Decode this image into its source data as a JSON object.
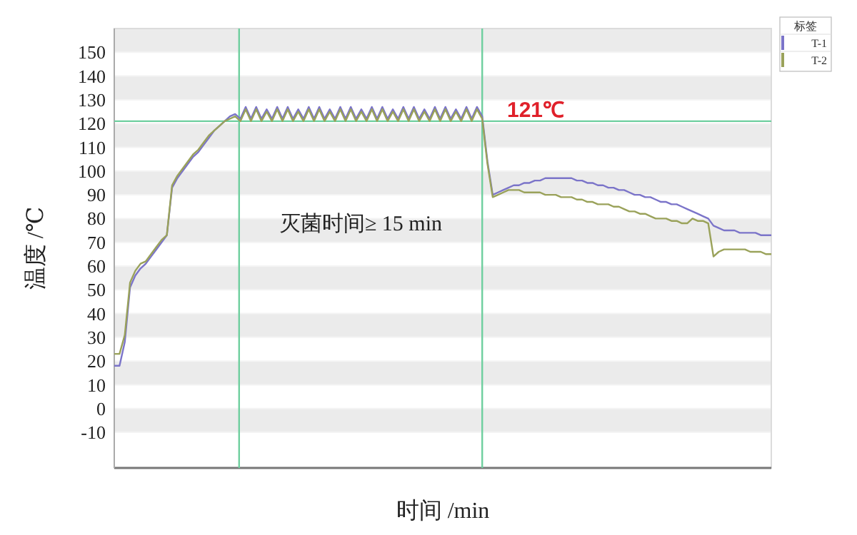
{
  "chart_data": {
    "type": "line",
    "xlabel": "时间 /min",
    "ylabel": "温度 /℃",
    "legend_title": "标签",
    "legend": "top right",
    "grid": "y",
    "tick_labels": "y",
    "marker": "none",
    "line_style": "solid",
    "ylim": [
      -25,
      160
    ],
    "yticks": [
      -10,
      0,
      10,
      20,
      30,
      40,
      50,
      60,
      70,
      80,
      90,
      100,
      110,
      120,
      130,
      140,
      150
    ],
    "categories": [
      null,
      null,
      null,
      null,
      null,
      null,
      null,
      null,
      null,
      null,
      null,
      null,
      null,
      null,
      null,
      null,
      null,
      null,
      null,
      null,
      null,
      null,
      null,
      null,
      null,
      null,
      null,
      null,
      null,
      null,
      null,
      null,
      null,
      null,
      null,
      null,
      null,
      null,
      null,
      null,
      null,
      null,
      null,
      null,
      null,
      null,
      null,
      null,
      null,
      null,
      null,
      null,
      null,
      null,
      null,
      null,
      null,
      null,
      null,
      null,
      null,
      null,
      null,
      null,
      null,
      null,
      null,
      null,
      null,
      null,
      null,
      null,
      null,
      null,
      null,
      null,
      null,
      null,
      null,
      null,
      null,
      null,
      null,
      null,
      null,
      null,
      null,
      null,
      null,
      null,
      null,
      null,
      null,
      null,
      null,
      null,
      null,
      null,
      null,
      null,
      null,
      null,
      null,
      null,
      null,
      null,
      null,
      null,
      null,
      null,
      null,
      null,
      null,
      null,
      null,
      null,
      null,
      null,
      null,
      null,
      null,
      null,
      null,
      null,
      null,
      null
    ],
    "series": [
      {
        "name": "T-1",
        "color": "#7b74c9",
        "values": [
          18,
          18,
          28,
          51,
          56,
          59,
          61,
          64,
          67,
          70,
          73,
          93,
          97,
          100,
          103,
          106,
          108,
          111,
          114,
          117,
          119,
          121,
          123,
          124,
          122,
          127,
          122,
          127,
          122,
          126,
          122,
          127,
          122,
          127,
          122,
          126,
          122,
          127,
          122,
          127,
          122,
          126,
          122,
          127,
          122,
          127,
          122,
          126,
          122,
          127,
          122,
          127,
          122,
          126,
          122,
          127,
          122,
          127,
          122,
          126,
          122,
          127,
          122,
          127,
          122,
          126,
          122,
          127,
          122,
          127,
          123,
          104,
          90,
          91,
          92,
          93,
          94,
          94,
          95,
          95,
          96,
          96,
          97,
          97,
          97,
          97,
          97,
          97,
          96,
          96,
          95,
          95,
          94,
          94,
          93,
          93,
          92,
          92,
          91,
          90,
          90,
          89,
          89,
          88,
          87,
          87,
          86,
          86,
          85,
          84,
          83,
          82,
          81,
          80,
          77,
          76,
          75,
          75,
          75,
          74,
          74,
          74,
          74,
          73,
          73,
          73
        ]
      },
      {
        "name": "T-2",
        "color": "#9aa25a",
        "values": [
          23,
          23,
          31,
          53,
          58,
          61,
          62,
          65,
          68,
          71,
          73,
          94,
          98,
          101,
          104,
          107,
          109,
          112,
          115,
          117,
          119,
          121,
          122,
          123,
          121,
          126,
          121,
          126,
          121,
          125,
          121,
          126,
          121,
          126,
          121,
          125,
          121,
          126,
          121,
          126,
          121,
          125,
          121,
          126,
          121,
          126,
          121,
          125,
          121,
          126,
          121,
          126,
          121,
          125,
          121,
          126,
          121,
          126,
          121,
          125,
          121,
          126,
          121,
          126,
          121,
          125,
          121,
          126,
          121,
          126,
          122,
          103,
          89,
          90,
          91,
          92,
          92,
          92,
          91,
          91,
          91,
          91,
          90,
          90,
          90,
          89,
          89,
          89,
          88,
          88,
          87,
          87,
          86,
          86,
          86,
          85,
          85,
          84,
          83,
          83,
          82,
          82,
          81,
          80,
          80,
          80,
          79,
          79,
          78,
          78,
          80,
          79,
          79,
          78,
          64,
          66,
          67,
          67,
          67,
          67,
          67,
          66,
          66,
          66,
          65,
          65
        ]
      }
    ],
    "ref_lines": [
      {
        "axis": "y",
        "value": 121,
        "label": "121℃",
        "color": "#6fcf9f"
      }
    ],
    "annotations": [
      "灭菌时间≥ 15 min"
    ]
  }
}
